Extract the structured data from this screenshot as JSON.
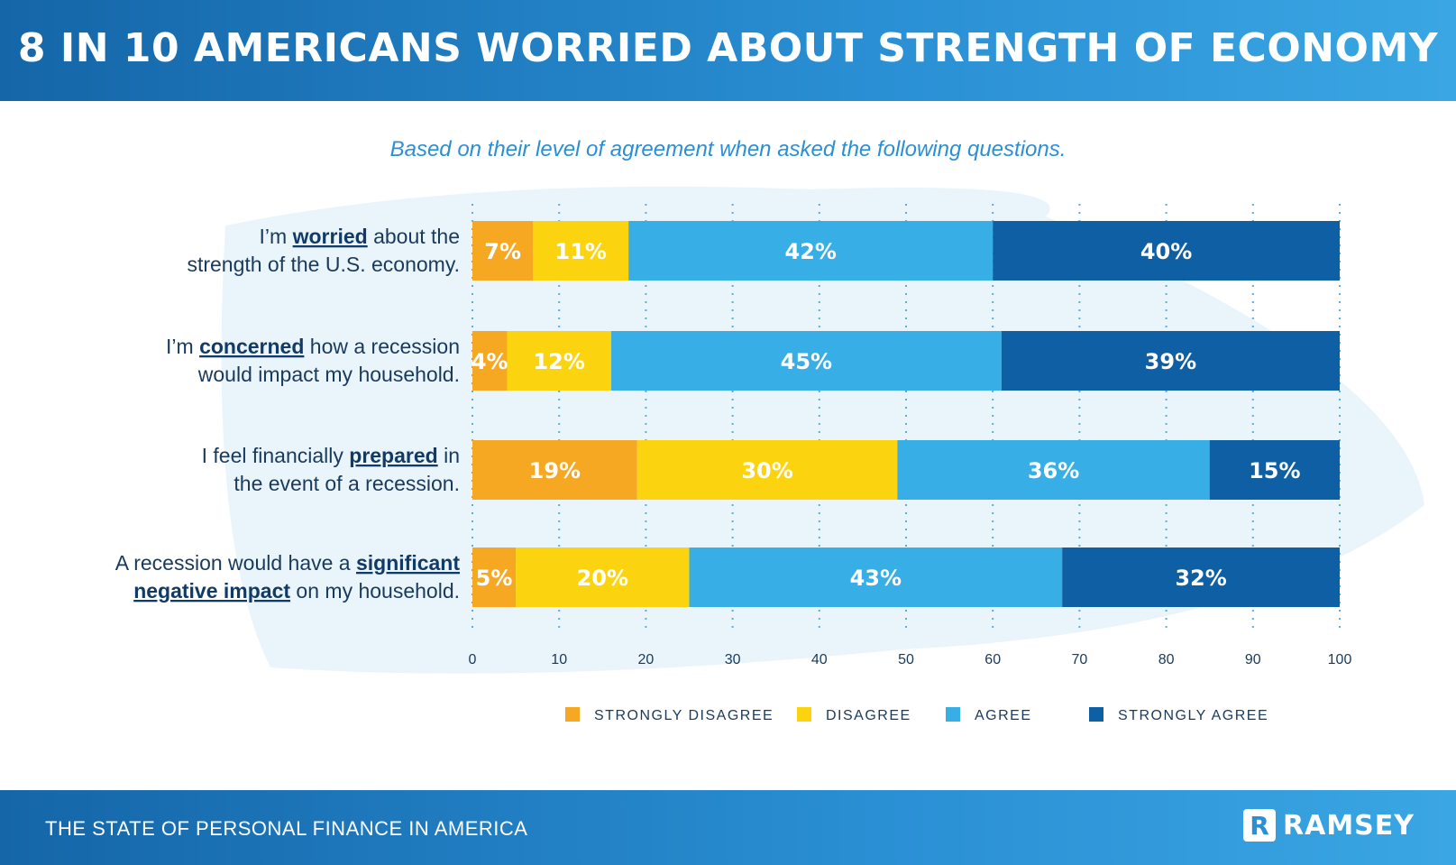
{
  "header": {
    "title": "8 IN 10 AMERICANS WORRIED ABOUT STRENGTH OF ECONOMY"
  },
  "footer": {
    "text": "THE STATE OF PERSONAL FINANCE IN AMERICA",
    "logo_text": "RAMSEY"
  },
  "colors": {
    "strongly_disagree": "#f7a823",
    "disagree": "#fbd40f",
    "agree": "#37aee5",
    "strongly_agree": "#0e5fa3",
    "text": "#1a3a5c",
    "accent": "#2a8fd4"
  },
  "chart_data": {
    "type": "bar",
    "orientation": "horizontal",
    "stacked": true,
    "title": "8 IN 10 AMERICANS WORRIED ABOUT STRENGTH OF ECONOMY",
    "subtitle": "Based on their level of agreement when asked the following questions.",
    "xlim": [
      0,
      100
    ],
    "xticks": [
      0,
      10,
      20,
      30,
      40,
      50,
      60,
      70,
      80,
      90,
      100
    ],
    "grid": "vertical dotted",
    "legend_position": "bottom",
    "categories": [
      [
        {
          "t": "I’m "
        },
        {
          "t": "worried",
          "b": true
        },
        {
          "t": " about the"
        },
        {
          "br": true
        },
        {
          "t": "strength of the U.S. economy."
        }
      ],
      [
        {
          "t": "I’m "
        },
        {
          "t": "concerned",
          "b": true
        },
        {
          "t": " how a recession"
        },
        {
          "br": true
        },
        {
          "t": "would impact my household."
        }
      ],
      [
        {
          "t": "I feel financially "
        },
        {
          "t": "prepared",
          "b": true
        },
        {
          "t": " in"
        },
        {
          "br": true
        },
        {
          "t": "the event of a recession."
        }
      ],
      [
        {
          "t": "A recession would have a "
        },
        {
          "t": "significant",
          "b": true
        },
        {
          "br": true
        },
        {
          "t": "negative impact",
          "b": true
        },
        {
          "t": " on my household."
        }
      ]
    ],
    "series": [
      {
        "name": "STRONGLY DISAGREE",
        "color_key": "strongly_disagree",
        "values": [
          7,
          4,
          19,
          5
        ],
        "labels": [
          "7%",
          "4%",
          "19%",
          "5%"
        ]
      },
      {
        "name": "DISAGREE",
        "color_key": "disagree",
        "values": [
          11,
          12,
          30,
          20
        ],
        "labels": [
          "11%",
          "12%",
          "30%",
          "20%"
        ]
      },
      {
        "name": "AGREE",
        "color_key": "agree",
        "values": [
          42,
          45,
          36,
          43
        ],
        "labels": [
          "42%",
          "45%",
          "36%",
          "43%"
        ]
      },
      {
        "name": "STRONGLY AGREE",
        "color_key": "strongly_agree",
        "values": [
          40,
          39,
          15,
          32
        ],
        "labels": [
          "40%",
          "39%",
          "15%",
          "32%"
        ]
      }
    ]
  }
}
